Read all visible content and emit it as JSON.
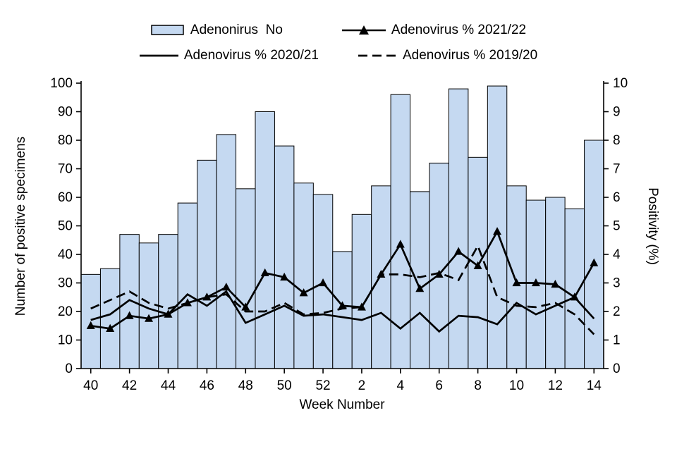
{
  "legend": {
    "bar_label": "Adenonirus  No",
    "line_2021_22_label": "Adenovirus % 2021/22",
    "line_2020_21_label": "Adenovirus % 2020/21",
    "line_2019_20_label": "Adenovirus % 2019/20"
  },
  "axes": {
    "left_title": "Number of positive specimens",
    "right_title": "Positivity (%)",
    "x_title": "Week Number"
  },
  "colors": {
    "bar_fill": "#C5D9F1",
    "bar_stroke": "#000000",
    "line_color": "#000000"
  },
  "chart_data": {
    "type": "bar",
    "title": "",
    "xlabel": "Week Number",
    "categories": [
      40,
      41,
      42,
      43,
      44,
      45,
      46,
      47,
      48,
      49,
      50,
      51,
      52,
      1,
      2,
      3,
      4,
      5,
      6,
      7,
      8,
      9,
      10,
      11,
      12,
      13,
      14
    ],
    "x_tick_labels": [
      "40",
      "42",
      "44",
      "46",
      "48",
      "50",
      "52",
      "2",
      "4",
      "6",
      "8",
      "10",
      "12",
      "14"
    ],
    "left_axis": {
      "label": "Number of positive specimens",
      "min": 0,
      "max": 100,
      "step": 10
    },
    "right_axis": {
      "label": "Positivity (%)",
      "min": 0,
      "max": 10,
      "step": 1
    },
    "grid": false,
    "legend_position": "top",
    "series": [
      {
        "name": "Adenonirus No",
        "type": "bar",
        "axis": "left",
        "values": [
          33,
          35,
          47,
          44,
          47,
          58,
          73,
          82,
          63,
          90,
          78,
          65,
          61,
          41,
          54,
          64,
          96,
          62,
          72,
          98,
          74,
          99,
          64,
          59,
          60,
          56,
          80
        ]
      },
      {
        "name": "Adenovirus % 2021/22",
        "type": "line",
        "marker": "triangle",
        "style": "solid",
        "axis": "right",
        "values": [
          1.5,
          1.4,
          1.85,
          1.75,
          1.9,
          2.3,
          2.5,
          2.85,
          2.15,
          3.35,
          3.2,
          2.65,
          3.0,
          2.2,
          2.15,
          3.3,
          4.35,
          2.8,
          3.3,
          4.1,
          3.6,
          4.8,
          3.0,
          3.0,
          2.95,
          2.5,
          3.7
        ]
      },
      {
        "name": "Adenovirus % 2020/21",
        "type": "line",
        "marker": "none",
        "style": "solid",
        "axis": "right",
        "values": [
          1.7,
          1.9,
          2.4,
          2.1,
          1.9,
          2.6,
          2.2,
          2.7,
          1.6,
          1.9,
          2.2,
          1.85,
          1.9,
          1.8,
          1.7,
          1.95,
          1.4,
          1.95,
          1.3,
          1.85,
          1.8,
          1.55,
          2.3,
          1.9,
          2.2,
          2.5,
          1.75
        ]
      },
      {
        "name": "Adenovirus % 2019/20",
        "type": "line",
        "marker": "none",
        "style": "dashed",
        "axis": "right",
        "values": [
          2.1,
          2.4,
          2.7,
          2.3,
          2.1,
          2.3,
          2.5,
          2.6,
          2.0,
          2.0,
          2.3,
          1.9,
          1.95,
          2.1,
          2.15,
          3.3,
          3.3,
          3.2,
          3.35,
          3.1,
          4.3,
          2.5,
          2.2,
          2.15,
          2.3,
          1.9,
          1.2
        ]
      }
    ]
  }
}
